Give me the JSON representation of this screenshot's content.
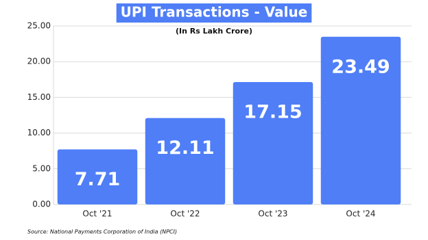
{
  "chart_data": {
    "type": "bar",
    "title": "UPI Transactions - Value",
    "subtitle": "(In Rs Lakh Crore)",
    "categories": [
      "Oct '21",
      "Oct '22",
      "Oct '23",
      "Oct '24"
    ],
    "values": [
      7.71,
      12.11,
      17.15,
      23.49
    ],
    "color": "#4f7ef6",
    "ylim": [
      0,
      25
    ],
    "yticks": [
      {
        "value": 0,
        "label": "0.00"
      },
      {
        "value": 5,
        "label": "5.00"
      },
      {
        "value": 10,
        "label": "10.00"
      },
      {
        "value": 15,
        "label": "15.00"
      },
      {
        "value": 20,
        "label": "20.00"
      },
      {
        "value": 25,
        "label": "25.00"
      }
    ],
    "grid": true,
    "source": "Source: National Payments Corporation of India (NPCI)"
  }
}
